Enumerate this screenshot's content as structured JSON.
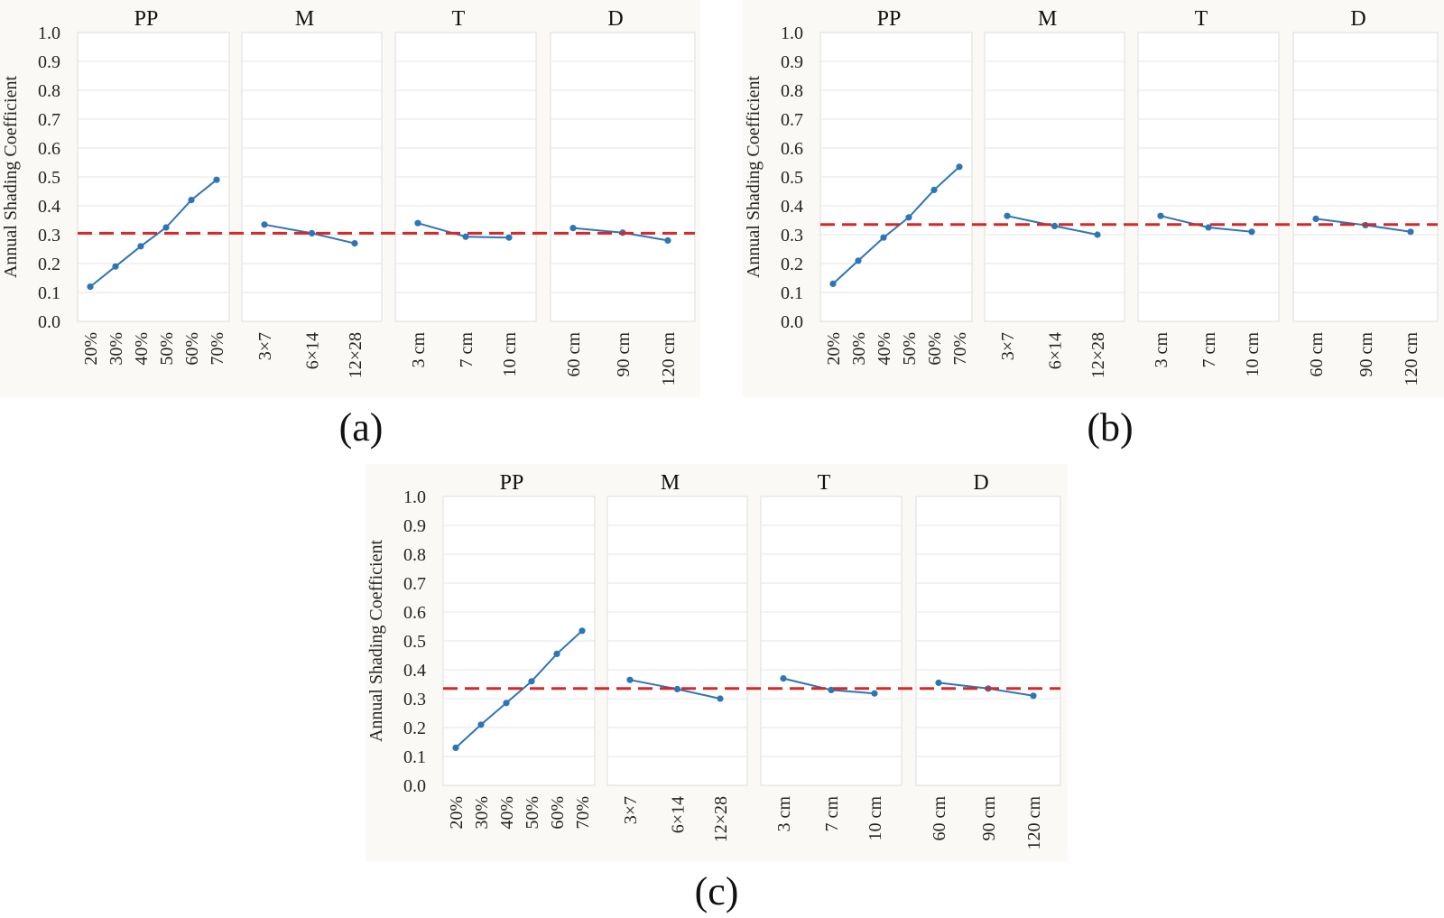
{
  "colors": {
    "series": "#2e75b6",
    "mean_line": "#d62828",
    "panel_bg": "#ffffff",
    "figure_bg": "#fbf9f5",
    "grid": "#e6e6e6"
  },
  "chart_data": [
    {
      "id": "a",
      "type": "line",
      "caption": "(a)",
      "ylabel": "Annual Shading Coefficient",
      "ylim": [
        0,
        1
      ],
      "yticks": [
        "0.0",
        "0.1",
        "0.2",
        "0.3",
        "0.4",
        "0.5",
        "0.6",
        "0.7",
        "0.8",
        "0.9",
        "1.0"
      ],
      "mean": 0.305,
      "grid": true,
      "panels": [
        {
          "title": "PP",
          "categories": [
            "20%",
            "30%",
            "40%",
            "50%",
            "60%",
            "70%"
          ],
          "values": [
            0.12,
            0.19,
            0.26,
            0.325,
            0.42,
            0.49
          ]
        },
        {
          "title": "M",
          "categories": [
            "3×7",
            "6×14",
            "12×28"
          ],
          "values": [
            0.335,
            0.305,
            0.27
          ]
        },
        {
          "title": "T",
          "categories": [
            "3 cm",
            "7 cm",
            "10 cm"
          ],
          "values": [
            0.34,
            0.293,
            0.29
          ]
        },
        {
          "title": "D",
          "categories": [
            "60 cm",
            "90 cm",
            "120 cm"
          ],
          "values": [
            0.323,
            0.307,
            0.28
          ]
        }
      ]
    },
    {
      "id": "b",
      "type": "line",
      "caption": "(b)",
      "ylabel": "Annual Shading Coefficient",
      "ylim": [
        0,
        1
      ],
      "yticks": [
        "0.0",
        "0.1",
        "0.2",
        "0.3",
        "0.4",
        "0.5",
        "0.6",
        "0.7",
        "0.8",
        "0.9",
        "1.0"
      ],
      "mean": 0.335,
      "grid": true,
      "panels": [
        {
          "title": "PP",
          "categories": [
            "20%",
            "30%",
            "40%",
            "50%",
            "60%",
            "70%"
          ],
          "values": [
            0.13,
            0.21,
            0.29,
            0.36,
            0.455,
            0.535
          ]
        },
        {
          "title": "M",
          "categories": [
            "3×7",
            "6×14",
            "12×28"
          ],
          "values": [
            0.365,
            0.33,
            0.3
          ]
        },
        {
          "title": "T",
          "categories": [
            "3 cm",
            "7 cm",
            "10 cm"
          ],
          "values": [
            0.365,
            0.325,
            0.31
          ]
        },
        {
          "title": "D",
          "categories": [
            "60 cm",
            "90 cm",
            "120 cm"
          ],
          "values": [
            0.355,
            0.333,
            0.31
          ]
        }
      ]
    },
    {
      "id": "c",
      "type": "line",
      "caption": "(c)",
      "ylabel": "Annual Shading Coefficient",
      "ylim": [
        0,
        1
      ],
      "yticks": [
        "0.0",
        "0.1",
        "0.2",
        "0.3",
        "0.4",
        "0.5",
        "0.6",
        "0.7",
        "0.8",
        "0.9",
        "1.0"
      ],
      "mean": 0.335,
      "grid": true,
      "panels": [
        {
          "title": "PP",
          "categories": [
            "20%",
            "30%",
            "40%",
            "50%",
            "60%",
            "70%"
          ],
          "values": [
            0.13,
            0.21,
            0.285,
            0.36,
            0.455,
            0.535
          ]
        },
        {
          "title": "M",
          "categories": [
            "3×7",
            "6×14",
            "12×28"
          ],
          "values": [
            0.365,
            0.333,
            0.3
          ]
        },
        {
          "title": "T",
          "categories": [
            "3 cm",
            "7 cm",
            "10 cm"
          ],
          "values": [
            0.37,
            0.33,
            0.318
          ]
        },
        {
          "title": "D",
          "categories": [
            "60 cm",
            "90 cm",
            "120 cm"
          ],
          "values": [
            0.355,
            0.335,
            0.31
          ]
        }
      ]
    }
  ]
}
